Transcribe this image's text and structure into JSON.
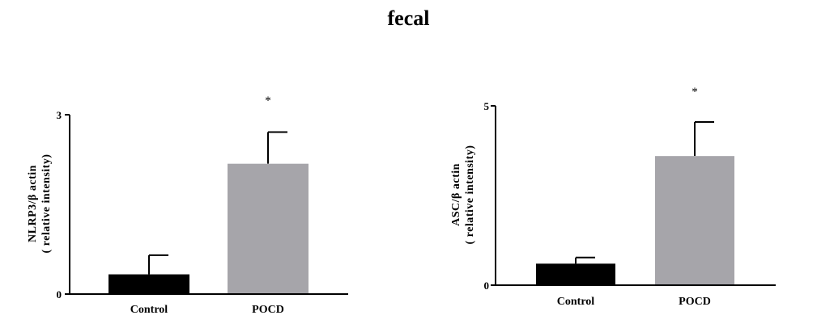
{
  "figure_title": "fecal",
  "chart_data": [
    {
      "type": "bar",
      "title": "",
      "categories": [
        "Control",
        "POCD"
      ],
      "values": [
        0.33,
        2.18
      ],
      "errors": [
        0.32,
        0.53
      ],
      "bar_colors": [
        "#000000",
        "#a6a5aa"
      ],
      "significance": [
        "",
        "*"
      ],
      "ylabel_line1": "NLRP3/β actin",
      "ylabel_line2": "( relative intensity)",
      "xlabel": "",
      "yticks": [
        "0",
        "3"
      ],
      "ylim": [
        0,
        3
      ]
    },
    {
      "type": "bar",
      "title": "",
      "categories": [
        "Control",
        "POCD"
      ],
      "values": [
        0.6,
        3.6
      ],
      "errors": [
        0.17,
        0.95
      ],
      "bar_colors": [
        "#000000",
        "#a6a5aa"
      ],
      "significance": [
        "",
        "*"
      ],
      "ylabel_line1": "ASC/β actin",
      "ylabel_line2": "( relative intensity)",
      "xlabel": "",
      "yticks": [
        "0",
        "5"
      ],
      "ylim": [
        0,
        5
      ]
    }
  ]
}
